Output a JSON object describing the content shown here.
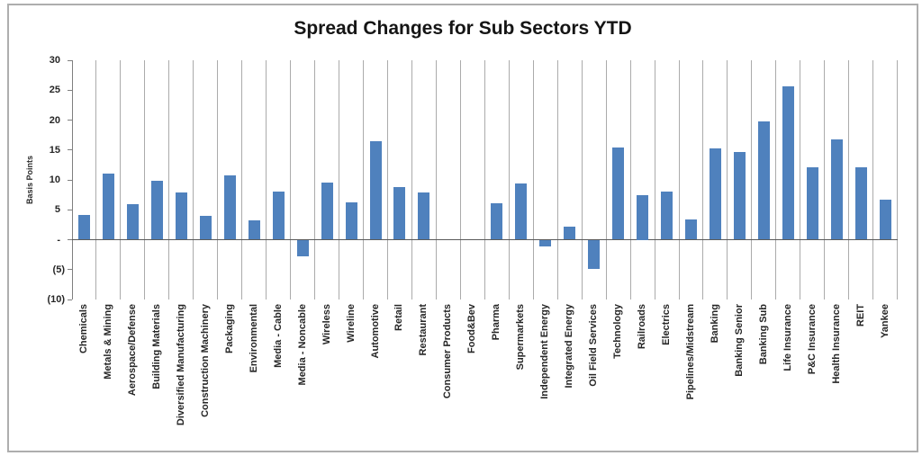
{
  "chart_data": {
    "type": "bar",
    "title": "Spread Changes for Sub Sectors YTD",
    "ylabel": "Basis Points",
    "xlabel": "",
    "ylim": [
      -10,
      30
    ],
    "ytick_step": 5,
    "yticks": [
      {
        "value": 30,
        "label": "30"
      },
      {
        "value": 25,
        "label": "25"
      },
      {
        "value": 20,
        "label": "20"
      },
      {
        "value": 15,
        "label": "15"
      },
      {
        "value": 10,
        "label": "10"
      },
      {
        "value": 5,
        "label": "5"
      },
      {
        "value": 0,
        "label": "-"
      },
      {
        "value": -5,
        "label": "(5)"
      },
      {
        "value": -10,
        "label": "(10)"
      }
    ],
    "grid": "vertical category separator lines only, no horizontal gridlines",
    "legend": "none",
    "bar_color": "#4F81BD",
    "gridline_color": "#ABABAB",
    "axis_line_color": "#7F7F7F",
    "categories": [
      "Chemicals",
      "Metals & Mining",
      "Aerospace/Defense",
      "Building Materials",
      "Diversified Manufacturing",
      "Construction Machinery",
      "Packaging",
      "Environmental",
      "Media - Cable",
      "Media - Noncable",
      "Wireless",
      "Wireline",
      "Automotive",
      "Retail",
      "Restaurant",
      "Consumer Products",
      "Food&Bev",
      "Pharma",
      "Supermarkets",
      "Independent Energy",
      "Integrated Energy",
      "Oil Field Services",
      "Technology",
      "Railroads",
      "Electrics",
      "Pipelines/Midstream",
      "Banking",
      "Banking Senior",
      "Banking Sub",
      "Life Insurance",
      "P&C Insurance",
      "Health Insurance",
      "REIT",
      "Yankee"
    ],
    "values": [
      4.2,
      11.0,
      6.0,
      9.9,
      7.9,
      4.0,
      10.7,
      3.2,
      8.1,
      -2.7,
      9.6,
      6.3,
      16.5,
      8.8,
      7.9,
      0,
      0,
      6.1,
      9.4,
      -1.0,
      2.2,
      -4.8,
      15.4,
      7.5,
      8.1,
      3.4,
      15.3,
      14.6,
      19.8,
      25.6,
      12.1,
      16.7,
      12.1,
      6.7
    ]
  }
}
